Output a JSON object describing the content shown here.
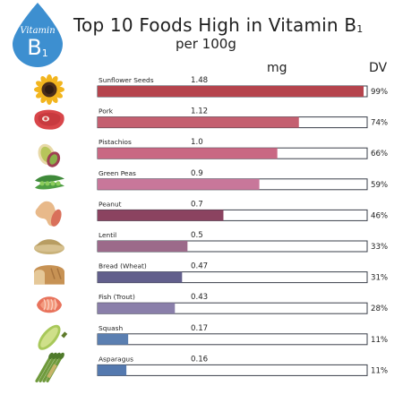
{
  "title": "Top 10 Foods High in Vitamin B",
  "title_sub": "1",
  "subtitle": "per 100g",
  "badge": {
    "label": "Vitamin",
    "letter": "B",
    "sub": "1"
  },
  "colors": {
    "badge": "#3d8fd0",
    "outline": "#3a3f4a"
  },
  "chart_data": {
    "type": "bar",
    "orientation": "horizontal",
    "title": "Top 10 Foods High in Vitamin B1",
    "subtitle": "per 100g",
    "value_header": "mg",
    "percent_header": "DV",
    "xlim": [
      0,
      1.5
    ],
    "categories": [
      "Sunflower Seeds",
      "Pork",
      "Pistachios",
      "Green Peas",
      "Peanut",
      "Lentil",
      "Bread (Wheat)",
      "Fish (Trout)",
      "Squash",
      "Asparagus"
    ],
    "value_labels": [
      "1.48",
      "1.12",
      "1.0",
      "0.9",
      "0.7",
      "0.5",
      "0.47",
      "0.43",
      "0.17",
      "0.16"
    ],
    "values": [
      1.48,
      1.12,
      1.0,
      0.9,
      0.7,
      0.5,
      0.47,
      0.43,
      0.17,
      0.16
    ],
    "dv_percent": [
      "99%",
      "74%",
      "66%",
      "59%",
      "46%",
      "33%",
      "31%",
      "28%",
      "11%",
      "11%"
    ],
    "bar_colors": [
      "#b5444d",
      "#c45f70",
      "#c96883",
      "#c8779a",
      "#8b4360",
      "#9c6a8a",
      "#625f8c",
      "#8a7faa",
      "#5b7fb1",
      "#5479af"
    ],
    "icons": [
      "sunflower-icon",
      "steak-icon",
      "pistachio-icon",
      "peas-icon",
      "peanut-icon",
      "lentil-icon",
      "bread-icon",
      "fish-icon",
      "squash-icon",
      "asparagus-icon"
    ]
  }
}
